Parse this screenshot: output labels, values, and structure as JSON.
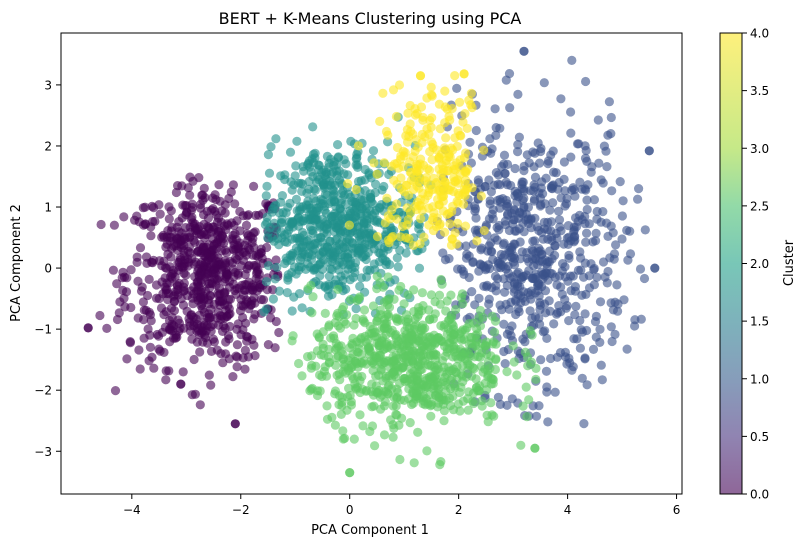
{
  "chart_data": {
    "type": "scatter",
    "title": "BERT + K-Means Clustering using PCA",
    "xlabel": "PCA Component 1",
    "ylabel": "PCA Component 2",
    "xlim": [
      -5.3,
      6.1
    ],
    "ylim": [
      -3.7,
      3.85
    ],
    "xticks": [
      -4,
      -2,
      0,
      2,
      4,
      6
    ],
    "yticks": [
      -3,
      -2,
      -1,
      0,
      1,
      2,
      3
    ],
    "xtick_labels": [
      "−4",
      "−2",
      "0",
      "2",
      "4",
      "6"
    ],
    "ytick_labels": [
      "−3",
      "−2",
      "−1",
      "0",
      "1",
      "2",
      "3"
    ],
    "grid": false,
    "point_alpha": 0.6,
    "colorbar": {
      "label": "Cluster",
      "range": [
        0,
        4
      ],
      "ticks": [
        0.0,
        0.5,
        1.0,
        1.5,
        2.0,
        2.5,
        3.0,
        3.5,
        4.0
      ],
      "tick_labels": [
        "0.0",
        "0.5",
        "1.0",
        "1.5",
        "2.0",
        "2.5",
        "3.0",
        "3.5",
        "4.0"
      ],
      "colormap": [
        "#440154",
        "#3b528b",
        "#21918c",
        "#5ec962",
        "#fde725"
      ]
    },
    "series": [
      {
        "cluster": 0,
        "color": "#440154",
        "count": 700,
        "center": [
          -2.6,
          -0.1
        ],
        "spread": [
          0.75,
          0.75
        ],
        "xrange": [
          -4.7,
          -1.3
        ],
        "yrange": [
          -2.6,
          1.5
        ]
      },
      {
        "cluster": 1,
        "color": "#3b528b",
        "count": 650,
        "center": [
          3.3,
          0.2
        ],
        "spread": [
          0.9,
          1.1
        ],
        "xrange": [
          1.6,
          5.6
        ],
        "yrange": [
          -2.6,
          3.6
        ]
      },
      {
        "cluster": 2,
        "color": "#21918c",
        "count": 650,
        "center": [
          -0.3,
          0.7
        ],
        "spread": [
          0.75,
          0.65
        ],
        "xrange": [
          -1.6,
          1.5
        ],
        "yrange": [
          -0.8,
          2.8
        ]
      },
      {
        "cluster": 3,
        "color": "#5ec962",
        "count": 750,
        "center": [
          1.1,
          -1.5
        ],
        "spread": [
          0.9,
          0.55
        ],
        "xrange": [
          -1.2,
          3.6
        ],
        "yrange": [
          -3.35,
          -0.1
        ]
      },
      {
        "cluster": 4,
        "color": "#fde725",
        "count": 260,
        "center": [
          1.5,
          1.5
        ],
        "spread": [
          0.55,
          0.7
        ],
        "xrange": [
          -0.9,
          2.5
        ],
        "yrange": [
          0.3,
          3.2
        ]
      }
    ],
    "outliers": [
      {
        "cluster": 0,
        "x": -4.8,
        "y": -0.98
      },
      {
        "cluster": 0,
        "x": -3.1,
        "y": -1.9
      },
      {
        "cluster": 0,
        "x": -2.1,
        "y": -2.55
      },
      {
        "cluster": 1,
        "x": 3.2,
        "y": 3.55
      },
      {
        "cluster": 1,
        "x": 5.5,
        "y": 1.92
      },
      {
        "cluster": 1,
        "x": 5.6,
        "y": 0.0
      },
      {
        "cluster": 3,
        "x": 0.0,
        "y": -3.35
      },
      {
        "cluster": 3,
        "x": 3.4,
        "y": -2.95
      },
      {
        "cluster": 4,
        "x": 1.3,
        "y": 3.15
      },
      {
        "cluster": 4,
        "x": 2.1,
        "y": 3.18
      }
    ]
  }
}
